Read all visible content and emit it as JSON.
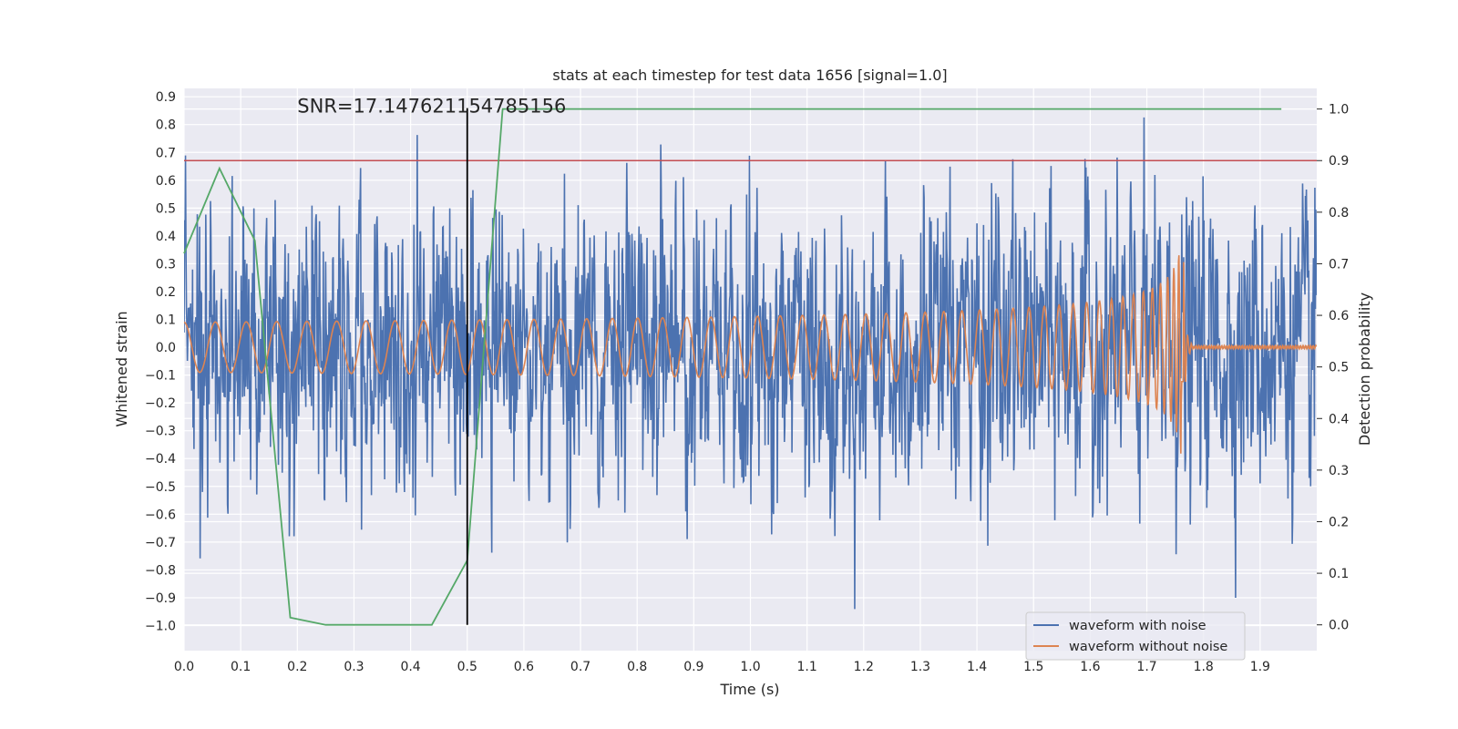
{
  "chart_data": {
    "type": "line",
    "title": "stats at each timestep for test data 1656 [signal=1.0]",
    "xlabel": "Time (s)",
    "ylabel": "Whitened strain",
    "y2label": "Detection probability",
    "xlim": [
      0.0,
      2.0
    ],
    "ylim": [
      -1.09,
      0.93
    ],
    "y2lim": [
      -0.05,
      1.04
    ],
    "x_ticks": [
      "0.0",
      "0.1",
      "0.2",
      "0.3",
      "0.4",
      "0.5",
      "0.6",
      "0.7",
      "0.8",
      "0.9",
      "1.0",
      "1.1",
      "1.2",
      "1.3",
      "1.4",
      "1.5",
      "1.6",
      "1.7",
      "1.8",
      "1.9"
    ],
    "x_tick_values": [
      0.0,
      0.1,
      0.2,
      0.3,
      0.4,
      0.5,
      0.6,
      0.7,
      0.8,
      0.9,
      1.0,
      1.1,
      1.2,
      1.3,
      1.4,
      1.5,
      1.6,
      1.7,
      1.8,
      1.9
    ],
    "y_ticks": [
      "0.9",
      "0.8",
      "0.7",
      "0.6",
      "0.5",
      "0.4",
      "0.3",
      "0.2",
      "0.1",
      "0.0",
      "−0.1",
      "−0.2",
      "−0.3",
      "−0.4",
      "−0.5",
      "−0.6",
      "−0.7",
      "−0.8",
      "−0.9",
      "−1.0"
    ],
    "y_tick_values": [
      0.9,
      0.8,
      0.7,
      0.6,
      0.5,
      0.4,
      0.3,
      0.2,
      0.1,
      0.0,
      -0.1,
      -0.2,
      -0.3,
      -0.4,
      -0.5,
      -0.6,
      -0.7,
      -0.8,
      -0.9,
      -1.0
    ],
    "y2_ticks": [
      "1.0",
      "0.9",
      "0.8",
      "0.7",
      "0.6",
      "0.5",
      "0.4",
      "0.3",
      "0.2",
      "0.1",
      "0.0"
    ],
    "y2_tick_values": [
      1.0,
      0.9,
      0.8,
      0.7,
      0.6,
      0.5,
      0.4,
      0.3,
      0.2,
      0.1,
      0.0
    ],
    "annotation": "SNR=17.147621154785156",
    "annotation_position": [
      0.2,
      0.87
    ],
    "threshold_probability": 0.9,
    "event_time": 0.5,
    "merger_time": 1.765,
    "series": [
      {
        "name": "waveform with noise",
        "color": "#4c72b0",
        "axis": "left",
        "description": "whitened noisy strain, spanning roughly -1.0 to 0.87"
      },
      {
        "name": "waveform without noise",
        "color": "#dd8452",
        "axis": "left",
        "description": "chirp signal, amplitude ~0.09 at t=0 rising to ~0.4 at merger (t≈1.765 s), then ringdown to zero"
      },
      {
        "name": "detection probability",
        "color": "#55a868",
        "axis": "right",
        "x": [
          0.0,
          0.0625,
          0.125,
          0.1875,
          0.25,
          0.3125,
          0.375,
          0.4375,
          0.5,
          0.5625,
          0.625,
          0.6875,
          0.75,
          0.8125,
          0.875,
          0.9375,
          1.0,
          1.0625,
          1.125,
          1.1875,
          1.25,
          1.3125,
          1.375,
          1.4375,
          1.5,
          1.5625,
          1.625,
          1.6875,
          1.75,
          1.8125,
          1.875,
          1.9375
        ],
        "values": [
          0.72,
          0.885,
          0.745,
          0.014,
          0.0,
          0.0,
          0.0,
          0.0,
          0.125,
          1.0,
          1.0,
          1.0,
          1.0,
          1.0,
          1.0,
          1.0,
          1.0,
          1.0,
          1.0,
          1.0,
          1.0,
          1.0,
          1.0,
          1.0,
          1.0,
          1.0,
          1.0,
          1.0,
          1.0,
          1.0,
          1.0,
          1.0
        ]
      }
    ],
    "legend": {
      "placement": "lower-right",
      "entries": [
        {
          "label": "waveform with noise",
          "color": "#4c72b0"
        },
        {
          "label": "waveform without noise",
          "color": "#dd8452"
        }
      ]
    },
    "colors": {
      "plot_background": "#eaeaf2",
      "grid": "#ffffff",
      "threshold_line": "#c44e52",
      "event_line": "#000000",
      "text": "#262626"
    }
  }
}
